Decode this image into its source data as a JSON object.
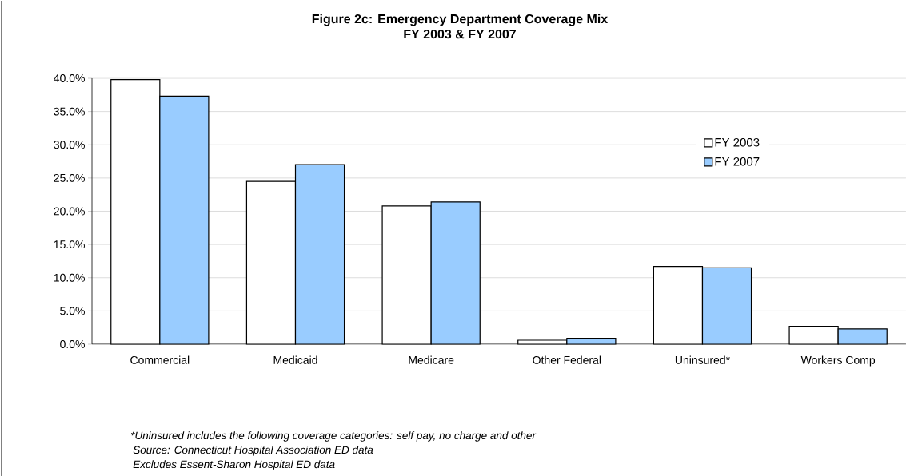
{
  "chart_data": {
    "type": "bar",
    "title": "Figure 2c: Emergency Department Coverage Mix",
    "subtitle": "FY 2003 & FY 2007",
    "categories": [
      "Commercial",
      "Medicaid",
      "Medicare",
      "Other Federal",
      "Uninsured*",
      "Workers Comp"
    ],
    "series": [
      {
        "name": "FY 2003",
        "color": "#ffffff",
        "values": [
          39.8,
          24.5,
          20.8,
          0.6,
          11.7,
          2.7
        ]
      },
      {
        "name": "FY 2007",
        "color": "#99ccff",
        "values": [
          37.3,
          27.0,
          21.4,
          0.9,
          11.5,
          2.3
        ]
      }
    ],
    "ylim": [
      0,
      40
    ],
    "yticks": [
      {
        "value": 0,
        "label": "0.0%"
      },
      {
        "value": 5,
        "label": "5.0%"
      },
      {
        "value": 10,
        "label": "10.0%"
      },
      {
        "value": 15,
        "label": "15.0%"
      },
      {
        "value": 20,
        "label": "20.0%"
      },
      {
        "value": 25,
        "label": "25.0%"
      },
      {
        "value": 30,
        "label": "30.0%"
      },
      {
        "value": 35,
        "label": "35.0%"
      },
      {
        "value": 40,
        "label": "40.0%"
      }
    ],
    "grid": "y",
    "legend": "right",
    "annotations": [
      "*Uninsured includes the following coverage categories: self pay, no charge and other",
      "Source: Connecticut Hospital Association ED data",
      "Excludes Essent-Sharon Hospital ED data"
    ]
  }
}
